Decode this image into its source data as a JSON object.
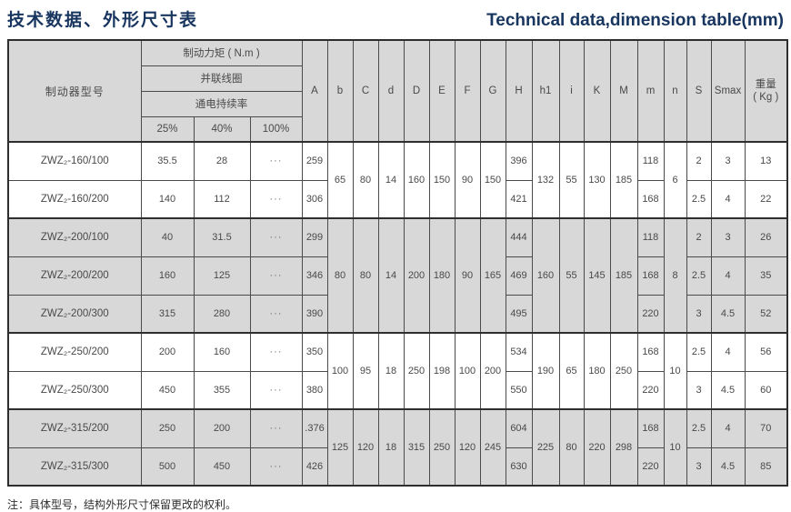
{
  "titles": {
    "zh": "技术数据、外形尺寸表",
    "en": "Technical data,dimension table(mm)"
  },
  "colors": {
    "title_navy": "#17355e",
    "header_bg": "#d8d8d8",
    "shaded_row_bg": "#d8d8d8",
    "border": "#4b4b4b",
    "thick_border": "#2e2e2e"
  },
  "table": {
    "header": {
      "model": "制动器型号",
      "torque": "制动力矩 ( N.m )",
      "coil": "并联线圈",
      "duty": "通电持续率",
      "duty_cols": [
        "25%",
        "40%",
        "100%"
      ],
      "dims": [
        "A",
        "b",
        "C",
        "d",
        "D",
        "E",
        "F",
        "G",
        "H",
        "h1",
        "i",
        "K",
        "M",
        "m",
        "n",
        "S",
        "Smax"
      ],
      "weight_line1": "重量",
      "weight_line2": "( Kg )"
    },
    "groups": [
      {
        "shaded": false,
        "shared": {
          "b": "65",
          "C": "80",
          "d": "14",
          "D": "160",
          "E": "150",
          "F": "90",
          "G": "150",
          "h1": "132",
          "i": "55",
          "K": "130",
          "M": "185",
          "n": "6"
        },
        "rows": [
          {
            "model": "ZWZ₂-160/100",
            "t25": "35.5",
            "t40": "28",
            "t100": "···",
            "A": "259",
            "H": "396",
            "m": "118",
            "S": "2",
            "Smax": "3",
            "W": "13"
          },
          {
            "model": "ZWZ₂-160/200",
            "t25": "140",
            "t40": "112",
            "t100": "···",
            "A": "306",
            "H": "421",
            "m": "168",
            "S": "2.5",
            "Smax": "4",
            "W": "22"
          }
        ]
      },
      {
        "shaded": true,
        "shared": {
          "b": "80",
          "C": "80",
          "d": "14",
          "D": "200",
          "E": "180",
          "F": "90",
          "G": "165",
          "h1": "160",
          "i": "55",
          "K": "145",
          "M": "185",
          "n": "8"
        },
        "rows": [
          {
            "model": "ZWZ₂-200/100",
            "t25": "40",
            "t40": "31.5",
            "t100": "···",
            "A": "299",
            "H": "444",
            "m": "118",
            "S": "2",
            "Smax": "3",
            "W": "26"
          },
          {
            "model": "ZWZ₂-200/200",
            "t25": "160",
            "t40": "125",
            "t100": "···",
            "A": "346",
            "H": "469",
            "m": "168",
            "S": "2.5",
            "Smax": "4",
            "W": "35"
          },
          {
            "model": "ZWZ₂-200/300",
            "t25": "315",
            "t40": "280",
            "t100": "···",
            "A": "390",
            "H": "495",
            "m": "220",
            "S": "3",
            "Smax": "4.5",
            "W": "52"
          }
        ]
      },
      {
        "shaded": false,
        "shared": {
          "b": "100",
          "C": "95",
          "d": "18",
          "D": "250",
          "E": "198",
          "F": "100",
          "G": "200",
          "h1": "190",
          "i": "65",
          "K": "180",
          "M": "250",
          "n": "10"
        },
        "rows": [
          {
            "model": "ZWZ₂-250/200",
            "t25": "200",
            "t40": "160",
            "t100": "···",
            "A": "350",
            "H": "534",
            "m": "168",
            "S": "2.5",
            "Smax": "4",
            "W": "56"
          },
          {
            "model": "ZWZ₂-250/300",
            "t25": "450",
            "t40": "355",
            "t100": "···",
            "A": "380",
            "H": "550",
            "m": "220",
            "S": "3",
            "Smax": "4.5",
            "W": "60"
          }
        ]
      },
      {
        "shaded": true,
        "shared": {
          "b": "125",
          "C": "120",
          "d": "18",
          "D": "315",
          "E": "250",
          "F": "120",
          "G": "245",
          "h1": "225",
          "i": "80",
          "K": "220",
          "M": "298",
          "n": "10"
        },
        "rows": [
          {
            "model": "ZWZ₂-315/200",
            "t25": "250",
            "t40": "200",
            "t100": "···",
            "A": ".376",
            "H": "604",
            "m": "168",
            "S": "2.5",
            "Smax": "4",
            "W": "70"
          },
          {
            "model": "ZWZ₂-315/300",
            "t25": "500",
            "t40": "450",
            "t100": "···",
            "A": "426",
            "H": "630",
            "m": "220",
            "S": "3",
            "Smax": "4.5",
            "W": "85"
          }
        ]
      }
    ]
  },
  "note": "注：具体型号，结构外形尺寸保留更改的权利。"
}
